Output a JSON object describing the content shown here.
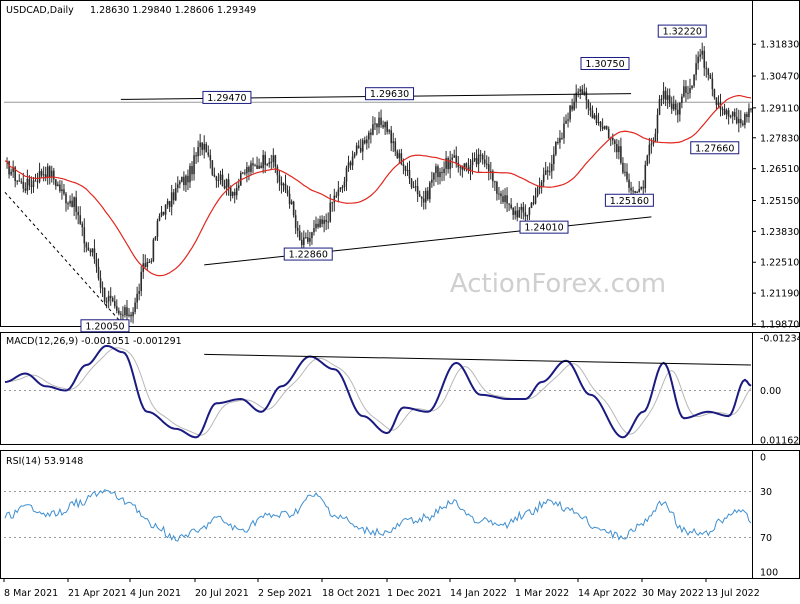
{
  "header": {
    "symbol": "USDCAD,Daily",
    "ohlc": "1.28630 1.29840 1.28606 1.29349",
    "macd": "MACD(12,26,9) -0.001051 -0.001291",
    "rsi": "RSI(14) 53.9148"
  },
  "watermark": "ActionForex.com",
  "colors": {
    "candle": "#2b2b2b",
    "ma": "#e0281f",
    "macd_line": "#1a1a80",
    "macd_signal": "#b8b8b8",
    "rsi": "#3f8fd0",
    "trendline": "#000000",
    "current_price_line": "#999999",
    "level_grid": "#9a9a9a"
  },
  "chart_data": [
    {
      "type": "candlestick",
      "title": "USDCAD,Daily",
      "x_ticks": [
        "8 Mar 2021",
        "21 Apr 2021",
        "4 Jun 2021",
        "20 Jul 2021",
        "2 Sep 2021",
        "18 Oct 2021",
        "1 Dec 2021",
        "14 Jan 2022",
        "1 Mar 2022",
        "14 Apr 2022",
        "30 May 2022",
        "13 Jul 2022"
      ],
      "y_ticks": [
        "1.31830",
        "1.30470",
        "1.29110",
        "1.27830",
        "1.26510",
        "1.25150",
        "1.23830",
        "1.22510",
        "1.21190",
        "1.19870"
      ],
      "ylim": [
        1.1987,
        1.3278
      ],
      "current_price": "1.29349",
      "moving_average": "red line",
      "anchors": [
        {
          "i": 0,
          "v": 1.266
        },
        {
          "i": 10,
          "v": 1.258
        },
        {
          "i": 20,
          "v": 1.264
        },
        {
          "i": 32,
          "v": 1.252
        },
        {
          "i": 42,
          "v": 1.23
        },
        {
          "i": 50,
          "v": 1.21
        },
        {
          "i": 56,
          "v": 1.202
        },
        {
          "i": 62,
          "v": 1.204
        },
        {
          "i": 70,
          "v": 1.225
        },
        {
          "i": 78,
          "v": 1.248
        },
        {
          "i": 88,
          "v": 1.26
        },
        {
          "i": 98,
          "v": 1.276
        },
        {
          "i": 104,
          "v": 1.262
        },
        {
          "i": 112,
          "v": 1.256
        },
        {
          "i": 120,
          "v": 1.265
        },
        {
          "i": 130,
          "v": 1.27
        },
        {
          "i": 138,
          "v": 1.256
        },
        {
          "i": 146,
          "v": 1.233
        },
        {
          "i": 156,
          "v": 1.241
        },
        {
          "i": 164,
          "v": 1.255
        },
        {
          "i": 172,
          "v": 1.272
        },
        {
          "i": 180,
          "v": 1.281
        },
        {
          "i": 186,
          "v": 1.285
        },
        {
          "i": 194,
          "v": 1.27
        },
        {
          "i": 200,
          "v": 1.26
        },
        {
          "i": 206,
          "v": 1.252
        },
        {
          "i": 212,
          "v": 1.264
        },
        {
          "i": 220,
          "v": 1.268
        },
        {
          "i": 228,
          "v": 1.266
        },
        {
          "i": 236,
          "v": 1.27
        },
        {
          "i": 242,
          "v": 1.256
        },
        {
          "i": 250,
          "v": 1.247
        },
        {
          "i": 256,
          "v": 1.246
        },
        {
          "i": 262,
          "v": 1.255
        },
        {
          "i": 266,
          "v": 1.264
        },
        {
          "i": 272,
          "v": 1.275
        },
        {
          "i": 278,
          "v": 1.29
        },
        {
          "i": 282,
          "v": 1.301
        },
        {
          "i": 288,
          "v": 1.29
        },
        {
          "i": 294,
          "v": 1.284
        },
        {
          "i": 300,
          "v": 1.276
        },
        {
          "i": 306,
          "v": 1.26
        },
        {
          "i": 312,
          "v": 1.254
        },
        {
          "i": 318,
          "v": 1.274
        },
        {
          "i": 324,
          "v": 1.298
        },
        {
          "i": 330,
          "v": 1.29
        },
        {
          "i": 336,
          "v": 1.3
        },
        {
          "i": 342,
          "v": 1.314
        },
        {
          "i": 346,
          "v": 1.308
        },
        {
          "i": 350,
          "v": 1.295
        },
        {
          "i": 356,
          "v": 1.288
        },
        {
          "i": 362,
          "v": 1.285
        },
        {
          "i": 367,
          "v": 1.291
        }
      ],
      "annotations": [
        {
          "text": "1.32220",
          "i": 344,
          "v": 1.3222,
          "side": "left",
          "dy": -4
        },
        {
          "text": "1.30750",
          "i": 306,
          "v": 1.3075,
          "side": "left",
          "dy": -6
        },
        {
          "text": "1.29470",
          "i": 120,
          "v": 1.2947,
          "side": "left",
          "dy": -2
        },
        {
          "text": "1.29630",
          "i": 200,
          "v": 1.2963,
          "side": "left",
          "dy": -2
        },
        {
          "text": "1.27660",
          "i": 360,
          "v": 1.2766,
          "side": "left",
          "dy": 6
        },
        {
          "text": "1.25160",
          "i": 318,
          "v": 1.2516,
          "side": "left",
          "dy": 0
        },
        {
          "text": "1.24010",
          "i": 276,
          "v": 1.2401,
          "side": "left",
          "dy": 0
        },
        {
          "text": "1.22860",
          "i": 160,
          "v": 1.2286,
          "side": "left",
          "dy": 0
        },
        {
          "text": "1.20050",
          "i": 60,
          "v": 1.2005,
          "side": "left",
          "dy": 6
        }
      ],
      "trendlines": [
        {
          "i1": 57,
          "v1": 1.2947,
          "i2": 308,
          "v2": 1.2972
        },
        {
          "i1": 98,
          "v1": 1.224,
          "i2": 318,
          "v2": 1.2445
        }
      ],
      "dashed_line": {
        "i1": 0,
        "v1": 1.255,
        "i2": 56,
        "v2": 1.2005
      }
    },
    {
      "type": "line",
      "title": "MACD(12,26,9) -0.001051 -0.001291",
      "y_ticks": [
        "0.011629",
        "0.00",
        "-0.012348"
      ],
      "ylim": [
        -0.012348,
        0.011629
      ],
      "anchors": [
        {
          "i": 0,
          "v": -0.002
        },
        {
          "i": 10,
          "v": -0.004
        },
        {
          "i": 20,
          "v": -0.001
        },
        {
          "i": 30,
          "v": 0.0
        },
        {
          "i": 40,
          "v": -0.006
        },
        {
          "i": 50,
          "v": -0.0105
        },
        {
          "i": 58,
          "v": -0.009
        },
        {
          "i": 70,
          "v": 0.005
        },
        {
          "i": 84,
          "v": 0.009
        },
        {
          "i": 94,
          "v": 0.011
        },
        {
          "i": 104,
          "v": 0.003
        },
        {
          "i": 116,
          "v": 0.002
        },
        {
          "i": 126,
          "v": 0.005
        },
        {
          "i": 136,
          "v": -0.001
        },
        {
          "i": 150,
          "v": -0.008
        },
        {
          "i": 162,
          "v": -0.005
        },
        {
          "i": 176,
          "v": 0.006
        },
        {
          "i": 188,
          "v": 0.01
        },
        {
          "i": 196,
          "v": 0.004
        },
        {
          "i": 208,
          "v": 0.005
        },
        {
          "i": 222,
          "v": -0.0065
        },
        {
          "i": 234,
          "v": 0.001
        },
        {
          "i": 248,
          "v": 0.002
        },
        {
          "i": 256,
          "v": 0.002
        },
        {
          "i": 264,
          "v": -0.002
        },
        {
          "i": 276,
          "v": -0.007
        },
        {
          "i": 288,
          "v": 0.001
        },
        {
          "i": 304,
          "v": 0.011
        },
        {
          "i": 314,
          "v": 0.005
        },
        {
          "i": 324,
          "v": -0.0065
        },
        {
          "i": 334,
          "v": 0.0065
        },
        {
          "i": 346,
          "v": 0.005
        },
        {
          "i": 356,
          "v": 0.006
        },
        {
          "i": 364,
          "v": -0.0025
        },
        {
          "i": 367,
          "v": -0.0011
        }
      ],
      "trendline": {
        "i1": 98,
        "v1": -0.0085,
        "i2": 367,
        "v2": -0.006
      }
    },
    {
      "type": "line",
      "title": "RSI(14) 53.9148",
      "y_ticks": [
        "100",
        "70",
        "30",
        "0"
      ],
      "ylim": [
        0,
        100
      ],
      "levels": [
        70,
        30
      ],
      "anchors": [
        {
          "i": 0,
          "v": 52
        },
        {
          "i": 12,
          "v": 44
        },
        {
          "i": 24,
          "v": 50
        },
        {
          "i": 36,
          "v": 40
        },
        {
          "i": 48,
          "v": 30
        },
        {
          "i": 60,
          "v": 38
        },
        {
          "i": 72,
          "v": 58
        },
        {
          "i": 84,
          "v": 70
        },
        {
          "i": 94,
          "v": 66
        },
        {
          "i": 104,
          "v": 54
        },
        {
          "i": 116,
          "v": 64
        },
        {
          "i": 128,
          "v": 52
        },
        {
          "i": 140,
          "v": 50
        },
        {
          "i": 152,
          "v": 34
        },
        {
          "i": 164,
          "v": 52
        },
        {
          "i": 176,
          "v": 64
        },
        {
          "i": 188,
          "v": 66
        },
        {
          "i": 198,
          "v": 56
        },
        {
          "i": 208,
          "v": 52
        },
        {
          "i": 220,
          "v": 40
        },
        {
          "i": 232,
          "v": 54
        },
        {
          "i": 244,
          "v": 60
        },
        {
          "i": 256,
          "v": 50
        },
        {
          "i": 268,
          "v": 38
        },
        {
          "i": 280,
          "v": 48
        },
        {
          "i": 292,
          "v": 62
        },
        {
          "i": 304,
          "v": 70
        },
        {
          "i": 314,
          "v": 56
        },
        {
          "i": 324,
          "v": 40
        },
        {
          "i": 334,
          "v": 64
        },
        {
          "i": 344,
          "v": 68
        },
        {
          "i": 352,
          "v": 56
        },
        {
          "i": 360,
          "v": 46
        },
        {
          "i": 367,
          "v": 54
        }
      ]
    }
  ]
}
